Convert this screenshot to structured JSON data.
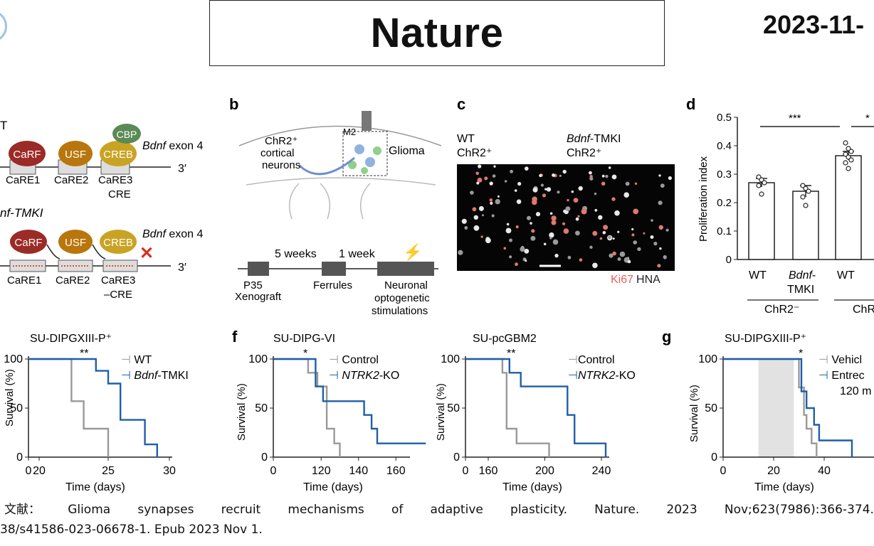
{
  "header": {
    "title": "Nature",
    "date": "2023-11-"
  },
  "panels": {
    "a": {
      "wt_label": "T",
      "tmki_label": "nf-TMKI",
      "factors": [
        "CaRF",
        "USF",
        "CREB"
      ],
      "cbp": "CBP",
      "exon_prefix": "Bdnf",
      "exon_suffix": " exon 4",
      "end_label": "3′",
      "elements": [
        "CaRE1",
        "CaRE2",
        "CaRE3"
      ],
      "cre_label": "CRE",
      "cre_label_tmki": "–CRE"
    },
    "b": {
      "letter": "b",
      "neurons_label": [
        "ChR2⁺",
        "cortical",
        "neurons"
      ],
      "region_label": "M2",
      "glioma_label": "Glioma",
      "timeline_intervals": [
        "5 weeks",
        "1 week"
      ],
      "timeline_steps": [
        [
          "P35",
          "Xenograft"
        ],
        [
          "Ferrules"
        ],
        [
          "Neuronal",
          "optogenetic",
          "stimulations"
        ]
      ]
    },
    "c": {
      "letter": "c",
      "left_label": [
        "WT",
        "ChR2⁺"
      ],
      "right_label_italic": "Bdnf",
      "right_label_rest": "-TMKI",
      "right_label_line2": "ChR2⁺",
      "stain_red": "Ki67",
      "stain_white": "HNA"
    },
    "d": {
      "letter": "d",
      "ylabel": "Proliferation index",
      "significance": [
        "***",
        "*"
      ],
      "group_labels": [
        "ChR2⁻",
        "ChR"
      ],
      "tick_WT": "WT",
      "tick_bdnf_italic": "Bdnf",
      "tick_bdnf_rest": "-",
      "tick_tmki": "TMKI"
    },
    "e": {
      "title": "SU-DIPGXIII-P⁺",
      "ylabel": "Survival (%)",
      "xlabel": "Time (days)",
      "significance": "**",
      "legend": [
        "WT",
        "Bdnf-TMKI"
      ],
      "legend_italic": "Bdnf",
      "legend_rest": "-TMKI"
    },
    "f": {
      "letter": "f",
      "left_title": "SU-DIPG-VI",
      "right_title": "SU-pcGBM2",
      "ylabel": "Survival (%)",
      "xlabel": "Time (days)",
      "significance_left": "*",
      "significance_right": "**",
      "legend_control": "Control",
      "legend_ko_italic": "NTRK2",
      "legend_ko_rest": "-KO"
    },
    "g": {
      "letter": "g",
      "title": "SU-DIPGXIII-P⁺",
      "ylabel": "Survival (%)",
      "xlabel": "Time (days)",
      "significance": "*",
      "legend": [
        "Vehicl",
        "Entrec",
        "120 m"
      ]
    }
  },
  "chart_data": [
    {
      "type": "bar",
      "panel": "d",
      "categories": [
        "WT",
        "Bdnf-TMKI",
        "WT"
      ],
      "groups": [
        "ChR2⁻",
        "ChR2⁻",
        "ChR"
      ],
      "values": [
        0.27,
        0.24,
        0.365
      ],
      "errors": [
        0.015,
        0.02,
        0.015
      ],
      "points": [
        [
          0.29,
          0.28,
          0.27,
          0.26,
          0.23
        ],
        [
          0.26,
          0.25,
          0.24,
          0.22,
          0.19
        ],
        [
          0.41,
          0.39,
          0.38,
          0.37,
          0.36,
          0.35,
          0.34,
          0.32
        ]
      ],
      "ylabel": "Proliferation index",
      "ylim": [
        0,
        0.5
      ],
      "yticks": [
        "0",
        "0.1",
        "0.2",
        "0.3",
        "0.4",
        "0.5"
      ]
    },
    {
      "type": "line",
      "panel": "e",
      "title": "SU-DIPGXIII-P⁺",
      "xlabel": "Time (days)",
      "ylabel": "Survival (%)",
      "xticks": [
        "0",
        "20",
        "25",
        "30"
      ],
      "yticks": [
        "0",
        "50",
        "100"
      ],
      "series": [
        {
          "name": "WT",
          "color": "#999999",
          "x": [
            0,
            22,
            22,
            23,
            23,
            25,
            25
          ],
          "y": [
            100,
            100,
            57,
            57,
            29,
            29,
            0
          ]
        },
        {
          "name": "Bdnf-TMKI",
          "color": "#1f5fa8",
          "x": [
            0,
            24,
            24,
            25,
            25,
            26,
            26,
            28,
            28,
            29,
            29
          ],
          "y": [
            100,
            100,
            88,
            88,
            75,
            75,
            38,
            38,
            13,
            13,
            0
          ]
        }
      ]
    },
    {
      "type": "line",
      "panel": "f-left",
      "title": "SU-DIPG-VI",
      "xlabel": "Time (days)",
      "ylabel": "Survival (%)",
      "xticks": [
        "0",
        "120",
        "140",
        "160"
      ],
      "yticks": [
        "0",
        "50",
        "100"
      ],
      "series": [
        {
          "name": "Control",
          "color": "#999999",
          "x": [
            0,
            113,
            113,
            118,
            118,
            123,
            123,
            127,
            127,
            130,
            130
          ],
          "y": [
            100,
            100,
            86,
            86,
            72,
            72,
            29,
            29,
            14,
            14,
            0
          ]
        },
        {
          "name": "NTRK2-KO",
          "color": "#1f5fa8",
          "x": [
            0,
            117,
            117,
            121,
            121,
            128,
            128,
            143,
            143,
            147,
            147,
            150,
            150,
            176
          ],
          "y": [
            100,
            100,
            72,
            72,
            57,
            57,
            57,
            57,
            43,
            43,
            29,
            29,
            14,
            14
          ]
        }
      ]
    },
    {
      "type": "line",
      "panel": "f-right",
      "title": "SU-pcGBM2",
      "xlabel": "Time (days)",
      "ylabel": "Survival (%)",
      "xticks": [
        "0",
        "160",
        "200",
        "240"
      ],
      "yticks": [
        "0",
        "50",
        "100"
      ],
      "series": [
        {
          "name": "Control",
          "color": "#999999",
          "x": [
            0,
            170,
            170,
            173,
            173,
            180,
            180,
            203,
            203
          ],
          "y": [
            100,
            100,
            86,
            86,
            29,
            29,
            14,
            14,
            0
          ]
        },
        {
          "name": "NTRK2-KO",
          "color": "#1f5fa8",
          "x": [
            0,
            175,
            175,
            183,
            183,
            216,
            216,
            221,
            221,
            243,
            243
          ],
          "y": [
            100,
            100,
            86,
            86,
            72,
            72,
            43,
            43,
            14,
            14,
            0
          ]
        }
      ]
    },
    {
      "type": "line",
      "panel": "g",
      "title": "SU-DIPGXIII-P⁺",
      "xlabel": "Time (days)",
      "ylabel": "Survival (%)",
      "xticks": [
        "0",
        "20",
        "40"
      ],
      "yticks": [
        "0",
        "50",
        "100"
      ],
      "shaded_interval": [
        14,
        28
      ],
      "series": [
        {
          "name": "Vehicl",
          "color": "#999999",
          "x": [
            0,
            30,
            30,
            32,
            32,
            33,
            33,
            35,
            35,
            37,
            37
          ],
          "y": [
            100,
            100,
            71,
            71,
            43,
            43,
            29,
            29,
            14,
            14,
            0
          ]
        },
        {
          "name": "Entrec",
          "color": "#1f5fa8",
          "x": [
            0,
            31,
            31,
            33,
            33,
            36,
            36,
            38,
            38,
            40,
            40,
            51,
            51
          ],
          "y": [
            100,
            100,
            67,
            67,
            50,
            50,
            33,
            33,
            17,
            17,
            17,
            17,
            0
          ]
        }
      ]
    }
  ],
  "reference": {
    "line1": [
      "文献：",
      "Glioma",
      "synapses",
      "recruit",
      "mechanisms",
      "of",
      "adaptive",
      "plasticity.",
      "Nature.",
      "2023",
      "Nov;623(7986):366-374."
    ],
    "line2": "38/s41586-023-06678-1. Epub 2023 Nov 1."
  }
}
